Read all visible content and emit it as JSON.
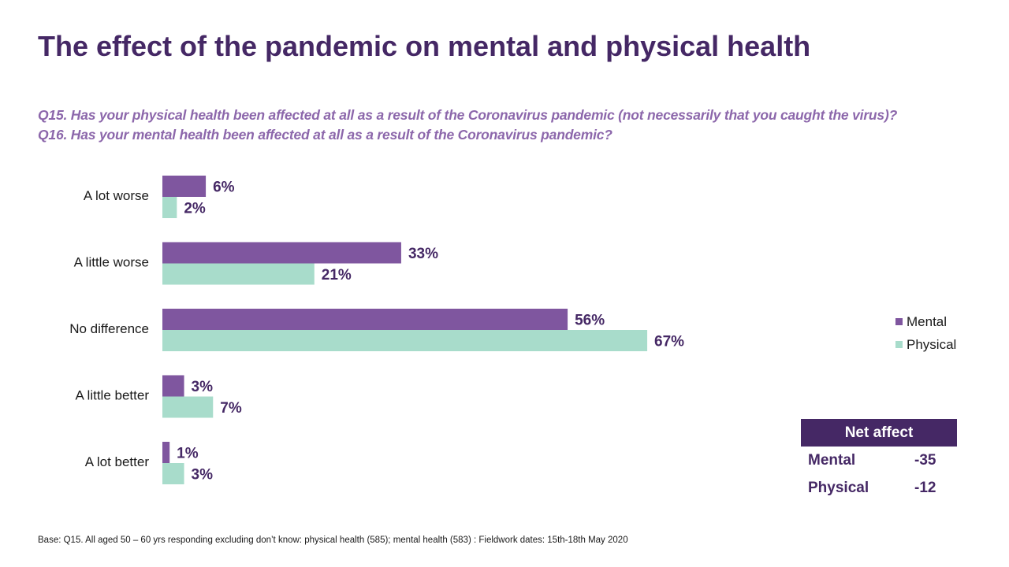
{
  "title": "The effect of the pandemic on mental and physical health",
  "questions": [
    "Q15. Has your physical health been affected at all as a result of the Coronavirus pandemic (not necessarily that you caught the virus)?",
    "Q16. Has your mental health been affected at all as a result of the Coronavirus pandemic?"
  ],
  "colors": {
    "mental": "#7F569F",
    "physical": "#A8DCCB",
    "title": "#452865",
    "question": "#8C67AB"
  },
  "chart_data": {
    "type": "bar",
    "orientation": "horizontal",
    "categories": [
      "A lot worse",
      "A little worse",
      "No difference",
      "A little better",
      "A lot better"
    ],
    "series": [
      {
        "name": "Mental",
        "values": [
          6,
          33,
          56,
          3,
          1
        ],
        "labels": [
          "6%",
          "33%",
          "56%",
          "3%",
          "1%"
        ]
      },
      {
        "name": "Physical",
        "values": [
          2,
          21,
          67,
          7,
          3
        ],
        "labels": [
          "2%",
          "21%",
          "67%",
          "7%",
          "3%"
        ]
      }
    ],
    "legend_position": "right",
    "grid": false
  },
  "legend": [
    {
      "label": "Mental"
    },
    {
      "label": "Physical"
    }
  ],
  "net_table": {
    "header": "Net affect",
    "rows": [
      {
        "label": "Mental",
        "value": "-35"
      },
      {
        "label": "Physical",
        "value": "-12"
      }
    ]
  },
  "footnote": "Base: Q15.  All aged 50 – 60 yrs responding  excluding don’t know: physical health (585);  mental health (583) : Fieldwork dates: 15th-18th May 2020"
}
